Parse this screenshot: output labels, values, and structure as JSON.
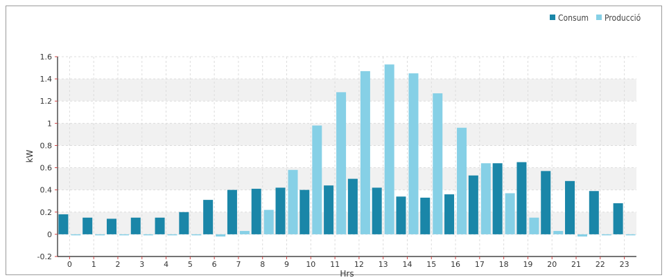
{
  "chart_data": {
    "type": "bar",
    "xlabel": "Hrs",
    "ylabel": "kW",
    "ylim": [
      -0.2,
      1.6
    ],
    "yticks": [
      "-0.2",
      "0",
      "0.2",
      "0.4",
      "0.6",
      "0.8",
      "1",
      "1.2",
      "1.4",
      "1.6"
    ],
    "categories": [
      "0",
      "1",
      "2",
      "3",
      "4",
      "5",
      "6",
      "7",
      "8",
      "9",
      "10",
      "11",
      "12",
      "13",
      "14",
      "15",
      "16",
      "17",
      "18",
      "19",
      "20",
      "21",
      "22",
      "23"
    ],
    "series": [
      {
        "name": "Consum",
        "color": "#1a86a8",
        "values": [
          0.18,
          0.15,
          0.14,
          0.15,
          0.15,
          0.2,
          0.31,
          0.4,
          0.41,
          0.42,
          0.4,
          0.44,
          0.5,
          0.42,
          0.34,
          0.33,
          0.36,
          0.53,
          0.64,
          0.65,
          0.57,
          0.48,
          0.39,
          0.28
        ]
      },
      {
        "name": "Producció",
        "color": "#86d0e6",
        "values": [
          0.0,
          0.0,
          0.0,
          0.0,
          0.0,
          0.0,
          -0.02,
          0.03,
          0.22,
          0.58,
          0.98,
          1.28,
          1.47,
          1.53,
          1.45,
          1.27,
          0.96,
          0.64,
          0.37,
          0.15,
          0.03,
          -0.02,
          0.0,
          0.0
        ]
      }
    ],
    "grid": true,
    "legend": "top-right"
  }
}
